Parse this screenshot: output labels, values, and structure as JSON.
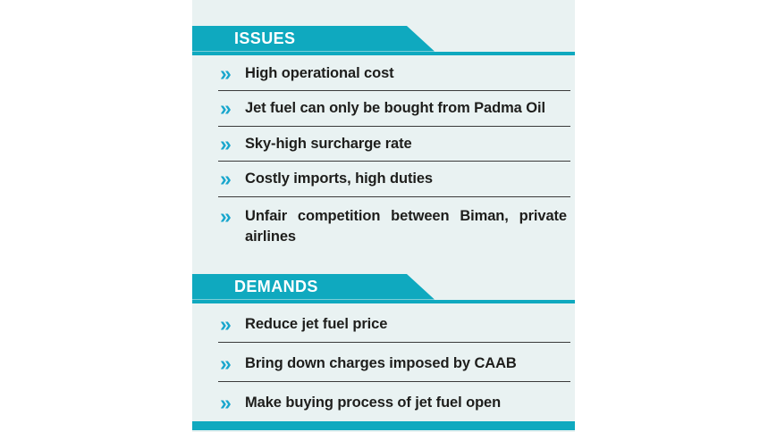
{
  "panel": {
    "bullet_glyph": "»",
    "colors": {
      "banner_teal": "#0fa9bf",
      "chevron_cyan": "#18a6cd",
      "panel_background": "#e9f2f2",
      "item_text": "#1e1e1c",
      "separator": "#3a3a3a"
    },
    "sections": [
      {
        "title": "ISSUES",
        "items": [
          "High operational cost",
          "Jet fuel can only be bought from Padma Oil",
          "Sky-high surcharge rate",
          "Costly imports, high duties",
          "Unfair competition between Biman, private airlines"
        ]
      },
      {
        "title": "DEMANDS",
        "items": [
          "Reduce jet fuel price",
          "Bring down charges imposed by CAAB",
          "Make buying process of jet fuel open"
        ]
      }
    ]
  }
}
